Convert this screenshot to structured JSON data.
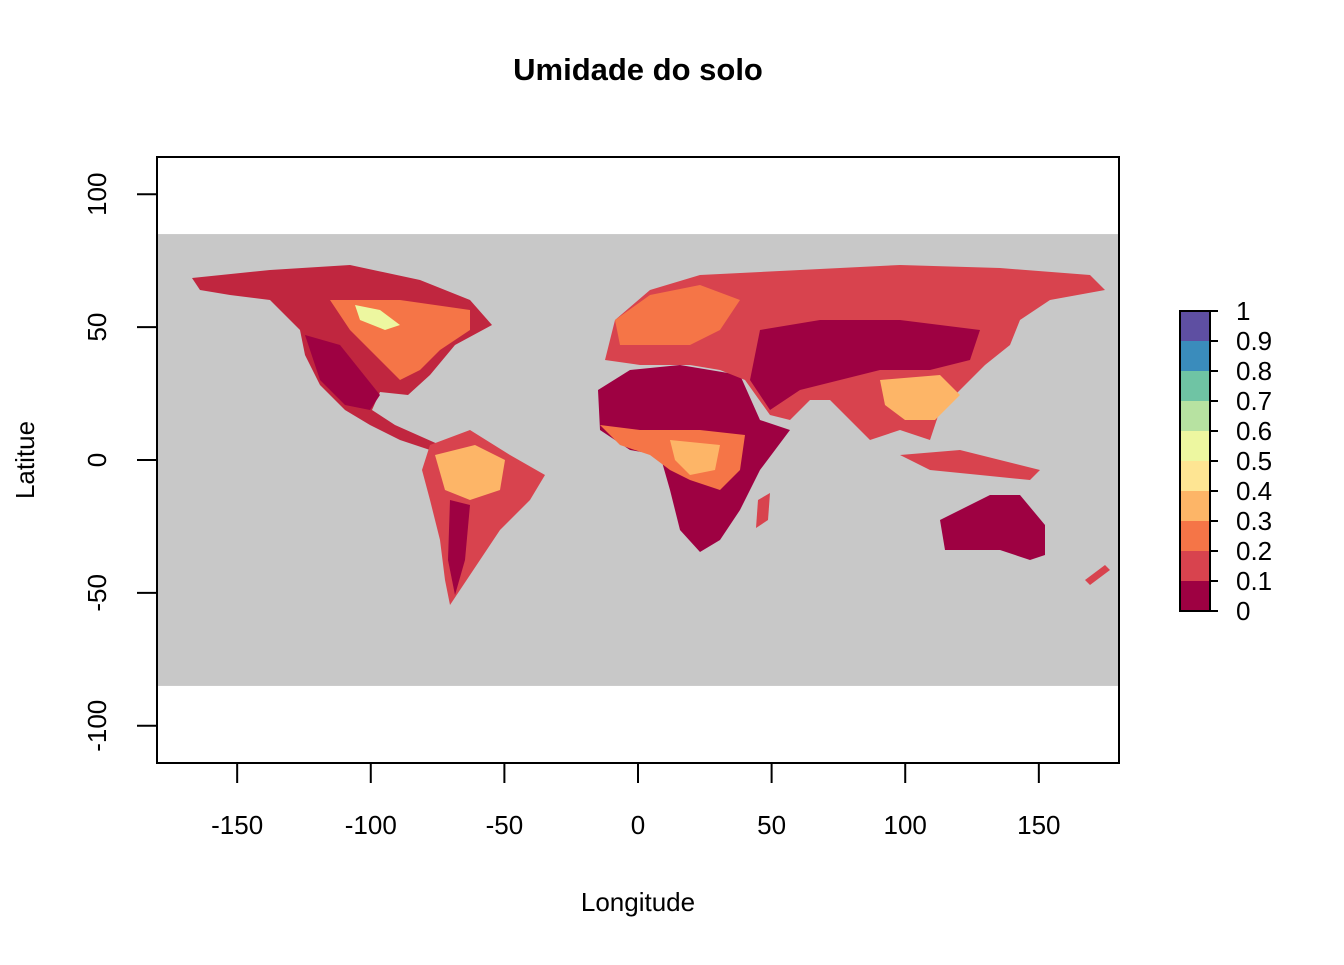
{
  "chart_data": {
    "type": "raster",
    "title": "Umidade do solo",
    "xlabel": "Longitude",
    "ylabel": "Latitue",
    "xlim": [
      -180,
      180
    ],
    "ylim": [
      -114,
      114
    ],
    "xticks": [
      -150,
      -100,
      -50,
      0,
      50,
      100,
      150
    ],
    "yticks": [
      -100,
      -50,
      0,
      50,
      100
    ],
    "raster_xlim": [
      -180,
      180
    ],
    "raster_ylim": [
      -85,
      85
    ],
    "raster_color": "#C8C8C8",
    "legend": {
      "breaks": [
        0,
        0.1,
        0.2,
        0.3,
        0.4,
        0.5,
        0.6,
        0.7,
        0.8,
        0.9,
        1
      ],
      "colors": [
        "#9E0142",
        "#D8434E",
        "#F57547",
        "#FDB567",
        "#FEE593",
        "#EDF7A0",
        "#B7E2A1",
        "#6FC4A4",
        "#3A8CBC",
        "#5E4FA2"
      ]
    }
  }
}
